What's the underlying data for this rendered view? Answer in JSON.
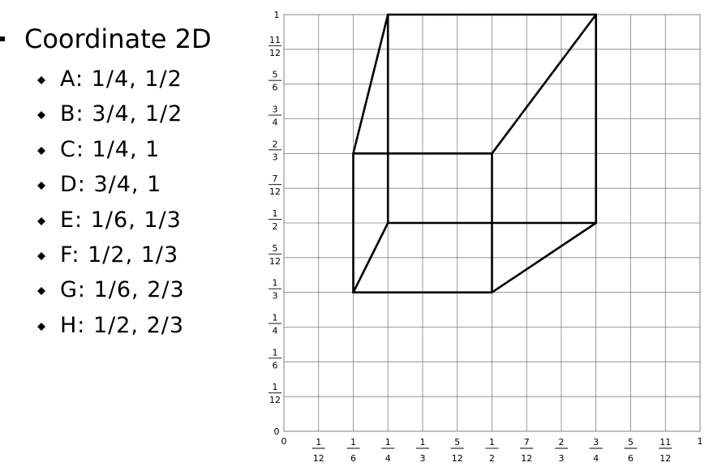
{
  "heading": "Coordinate 2D",
  "points": [
    {
      "name": "A",
      "label": "A: 1/4, 1/2",
      "x": 0.25,
      "y": 0.5
    },
    {
      "name": "B",
      "label": "B: 3/4, 1/2",
      "x": 0.75,
      "y": 0.5
    },
    {
      "name": "C",
      "label": "C: 1/4, 1",
      "x": 0.25,
      "y": 1.0
    },
    {
      "name": "D",
      "label": "D: 3/4, 1",
      "x": 0.75,
      "y": 1.0
    },
    {
      "name": "E",
      "label": "E: 1/6, 1/3",
      "x": 0.1667,
      "y": 0.3333
    },
    {
      "name": "F",
      "label": "F: 1/2, 1/3",
      "x": 0.5,
      "y": 0.3333
    },
    {
      "name": "G",
      "label": "G: 1/6, 2/3",
      "x": 0.1667,
      "y": 0.6667
    },
    {
      "name": "H",
      "label": "H: 1/2, 2/3",
      "x": 0.5,
      "y": 0.6667
    }
  ],
  "edges": [
    [
      "A",
      "B"
    ],
    [
      "B",
      "D"
    ],
    [
      "D",
      "C"
    ],
    [
      "C",
      "A"
    ],
    [
      "E",
      "F"
    ],
    [
      "F",
      "H"
    ],
    [
      "H",
      "G"
    ],
    [
      "G",
      "E"
    ],
    [
      "A",
      "E"
    ],
    [
      "B",
      "F"
    ],
    [
      "C",
      "G"
    ],
    [
      "D",
      "H"
    ]
  ],
  "x_ticks": [
    {
      "value": 0,
      "label": "0"
    },
    {
      "value": 0.0833,
      "num": "1",
      "den": "12"
    },
    {
      "value": 0.1667,
      "num": "1",
      "den": "6"
    },
    {
      "value": 0.25,
      "num": "1",
      "den": "4"
    },
    {
      "value": 0.3333,
      "num": "1",
      "den": "3"
    },
    {
      "value": 0.4167,
      "num": "5",
      "den": "12"
    },
    {
      "value": 0.5,
      "num": "1",
      "den": "2"
    },
    {
      "value": 0.5833,
      "num": "7",
      "den": "12"
    },
    {
      "value": 0.6667,
      "num": "2",
      "den": "3"
    },
    {
      "value": 0.75,
      "num": "3",
      "den": "4"
    },
    {
      "value": 0.8333,
      "num": "5",
      "den": "6"
    },
    {
      "value": 0.9167,
      "num": "11",
      "den": "12"
    },
    {
      "value": 1,
      "label": "1"
    }
  ],
  "y_ticks": [
    {
      "value": 0,
      "label": "0"
    },
    {
      "value": 0.0833,
      "num": "1",
      "den": "12"
    },
    {
      "value": 0.1667,
      "num": "1",
      "den": "6"
    },
    {
      "value": 0.25,
      "num": "1",
      "den": "4"
    },
    {
      "value": 0.3333,
      "num": "1",
      "den": "3"
    },
    {
      "value": 0.4167,
      "num": "5",
      "den": "12"
    },
    {
      "value": 0.5,
      "num": "1",
      "den": "2"
    },
    {
      "value": 0.5833,
      "num": "7",
      "den": "12"
    },
    {
      "value": 0.6667,
      "num": "2",
      "den": "3"
    },
    {
      "value": 0.75,
      "num": "3",
      "den": "4"
    },
    {
      "value": 0.8333,
      "num": "5",
      "den": "6"
    },
    {
      "value": 0.9167,
      "num": "11",
      "den": "12"
    },
    {
      "value": 1,
      "label": "1"
    }
  ],
  "colors": {
    "ink": "#000000",
    "grid": "#808080"
  }
}
